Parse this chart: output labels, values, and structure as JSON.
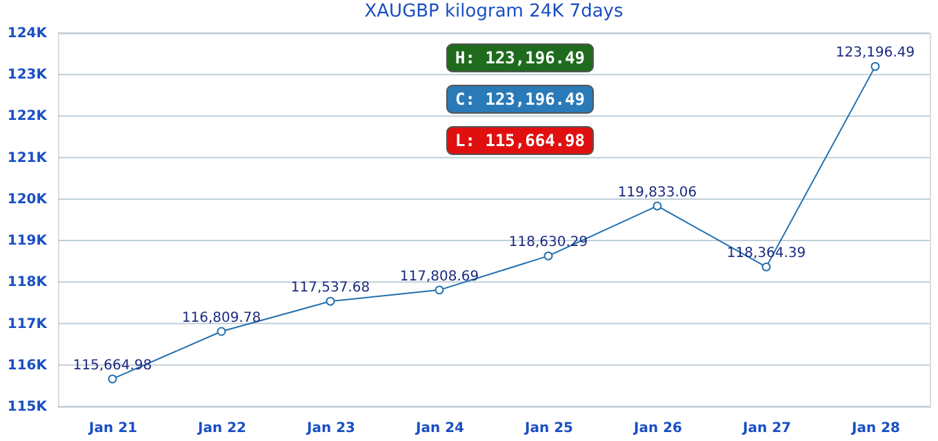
{
  "chart_data": {
    "type": "line",
    "title": "XAUGBP kilogram 24K 7days",
    "categories": [
      "Jan 21",
      "Jan 22",
      "Jan 23",
      "Jan 24",
      "Jan 25",
      "Jan 26",
      "Jan 27",
      "Jan 28"
    ],
    "series": [
      {
        "color": "#1f6fb0",
        "values": [
          115664.98,
          116809.78,
          117537.68,
          117808.69,
          118630.29,
          119833.06,
          118364.39,
          123196.49
        ]
      }
    ],
    "ylim": [
      115000,
      124000
    ],
    "yticks": [
      {
        "value": 115000,
        "label": "115K"
      },
      {
        "value": 116000,
        "label": "116K"
      },
      {
        "value": 117000,
        "label": "117K"
      },
      {
        "value": 118000,
        "label": "118K"
      },
      {
        "value": 119000,
        "label": "119K"
      },
      {
        "value": 120000,
        "label": "120K"
      },
      {
        "value": 121000,
        "label": "121K"
      },
      {
        "value": 122000,
        "label": "122K"
      },
      {
        "value": 123000,
        "label": "123K"
      },
      {
        "value": 124000,
        "label": "124K"
      }
    ],
    "grid": "y",
    "marker": "circle",
    "line_style": "solid",
    "value_labels": [
      "115,664.98",
      "116,809.78",
      "117,537.68",
      "117,808.69",
      "118,630.29",
      "119,833.06",
      "118,364.39",
      "123,196.49"
    ],
    "annotations": [
      "H: 123,196.49",
      "C: 123,196.49",
      "L: 115,664.98"
    ]
  }
}
